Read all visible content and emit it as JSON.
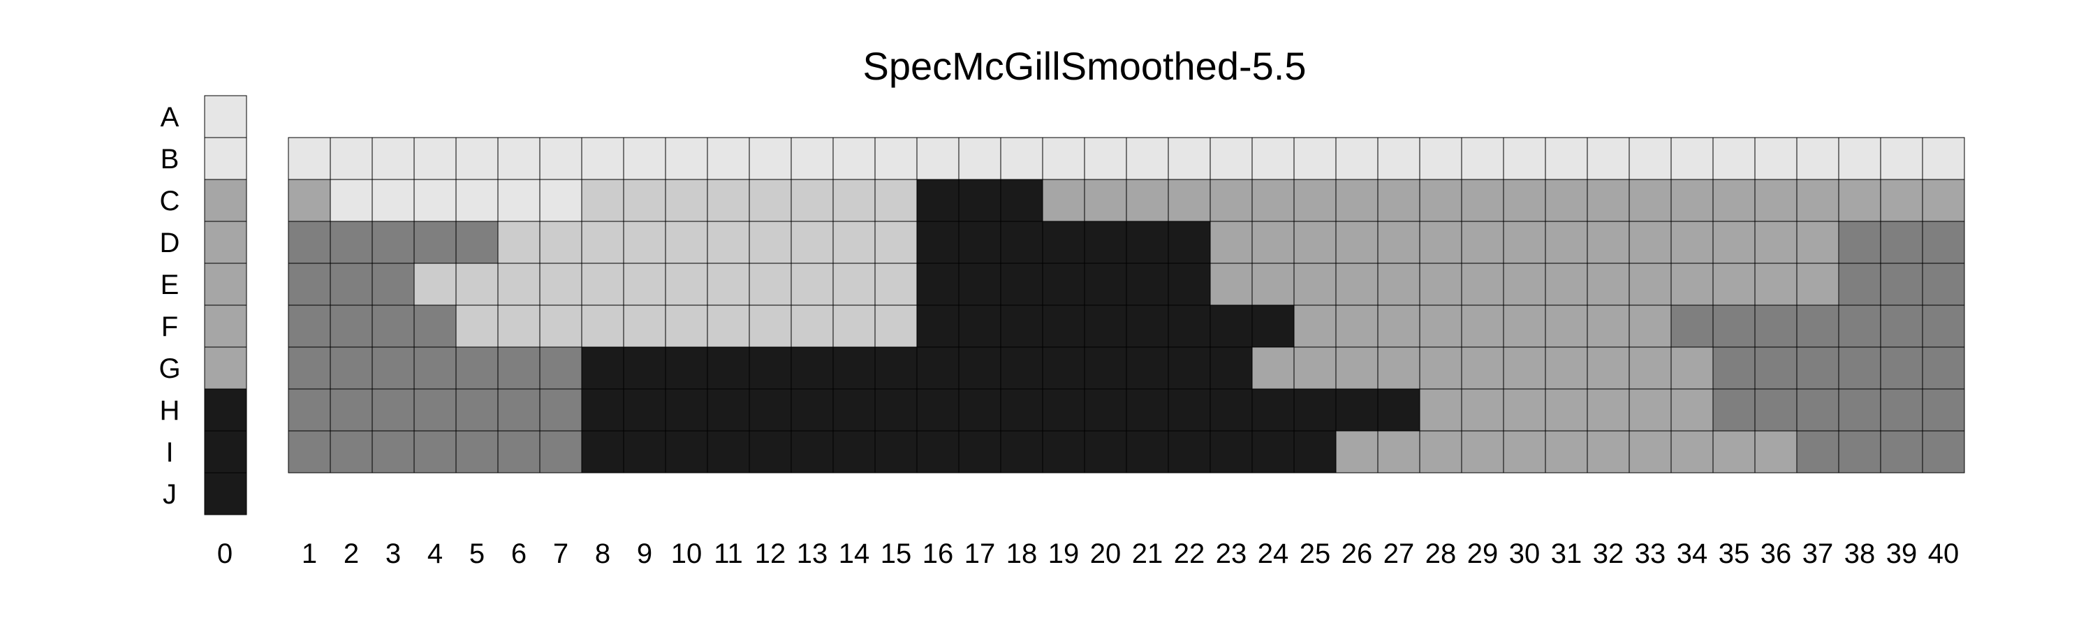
{
  "chart_data": {
    "type": "heatmap",
    "title": "SpecMcGillSmoothed-5.5",
    "rows": [
      "A",
      "B",
      "C",
      "D",
      "E",
      "F",
      "G",
      "H",
      "I",
      "J"
    ],
    "columns": [
      1,
      2,
      3,
      4,
      5,
      6,
      7,
      8,
      9,
      10,
      11,
      12,
      13,
      14,
      15,
      16,
      17,
      18,
      19,
      20,
      21,
      22,
      23,
      24,
      25,
      26,
      27,
      28,
      29,
      30,
      31,
      32,
      33,
      34,
      35,
      36,
      37,
      38,
      39,
      40
    ],
    "legend_column_label": "0",
    "grid": true,
    "palette": {
      "1": "#e6e6e6",
      "2": "#cccccc",
      "3": "#a6a6a6",
      "4": "#7f7f7f",
      "5": "#1a1a1a"
    },
    "legend_cells": [
      {
        "row": "A",
        "level": 1
      },
      {
        "row": "B",
        "level": 1
      },
      {
        "row": "C",
        "level": 3
      },
      {
        "row": "D",
        "level": 3
      },
      {
        "row": "E",
        "level": 3
      },
      {
        "row": "F",
        "level": 3
      },
      {
        "row": "G",
        "level": 3
      },
      {
        "row": "H",
        "level": 5
      },
      {
        "row": "I",
        "level": 5
      },
      {
        "row": "J",
        "level": 5
      }
    ],
    "matrix": [
      {
        "row": "B",
        "levels": [
          1,
          1,
          1,
          1,
          1,
          1,
          1,
          1,
          1,
          1,
          1,
          1,
          1,
          1,
          1,
          1,
          1,
          1,
          1,
          1,
          1,
          1,
          1,
          1,
          1,
          1,
          1,
          1,
          1,
          1,
          1,
          1,
          1,
          1,
          1,
          1,
          1,
          1,
          1,
          1
        ]
      },
      {
        "row": "C",
        "levels": [
          3,
          1,
          1,
          1,
          1,
          1,
          1,
          2,
          2,
          2,
          2,
          2,
          2,
          2,
          2,
          5,
          5,
          5,
          3,
          3,
          3,
          3,
          3,
          3,
          3,
          3,
          3,
          3,
          3,
          3,
          3,
          3,
          3,
          3,
          3,
          3,
          3,
          3,
          3,
          3
        ]
      },
      {
        "row": "D",
        "levels": [
          4,
          4,
          4,
          4,
          4,
          2,
          2,
          2,
          2,
          2,
          2,
          2,
          2,
          2,
          2,
          5,
          5,
          5,
          5,
          5,
          5,
          5,
          3,
          3,
          3,
          3,
          3,
          3,
          3,
          3,
          3,
          3,
          3,
          3,
          3,
          3,
          3,
          4,
          4,
          4
        ]
      },
      {
        "row": "E",
        "levels": [
          4,
          4,
          4,
          2,
          2,
          2,
          2,
          2,
          2,
          2,
          2,
          2,
          2,
          2,
          2,
          5,
          5,
          5,
          5,
          5,
          5,
          5,
          3,
          3,
          3,
          3,
          3,
          3,
          3,
          3,
          3,
          3,
          3,
          3,
          3,
          3,
          3,
          4,
          4,
          4
        ]
      },
      {
        "row": "F",
        "levels": [
          4,
          4,
          4,
          4,
          2,
          2,
          2,
          2,
          2,
          2,
          2,
          2,
          2,
          2,
          2,
          5,
          5,
          5,
          5,
          5,
          5,
          5,
          5,
          5,
          3,
          3,
          3,
          3,
          3,
          3,
          3,
          3,
          3,
          4,
          4,
          4,
          4,
          4,
          4,
          4
        ]
      },
      {
        "row": "G",
        "levels": [
          4,
          4,
          4,
          4,
          4,
          4,
          4,
          5,
          5,
          5,
          5,
          5,
          5,
          5,
          5,
          5,
          5,
          5,
          5,
          5,
          5,
          5,
          5,
          3,
          3,
          3,
          3,
          3,
          3,
          3,
          3,
          3,
          3,
          3,
          4,
          4,
          4,
          4,
          4,
          4
        ]
      },
      {
        "row": "H",
        "levels": [
          4,
          4,
          4,
          4,
          4,
          4,
          4,
          5,
          5,
          5,
          5,
          5,
          5,
          5,
          5,
          5,
          5,
          5,
          5,
          5,
          5,
          5,
          5,
          5,
          5,
          5,
          5,
          3,
          3,
          3,
          3,
          3,
          3,
          3,
          4,
          4,
          4,
          4,
          4,
          4
        ]
      },
      {
        "row": "I",
        "levels": [
          4,
          4,
          4,
          4,
          4,
          4,
          4,
          5,
          5,
          5,
          5,
          5,
          5,
          5,
          5,
          5,
          5,
          5,
          5,
          5,
          5,
          5,
          5,
          5,
          5,
          3,
          3,
          3,
          3,
          3,
          3,
          3,
          3,
          3,
          3,
          3,
          4,
          4,
          4,
          4
        ]
      }
    ]
  }
}
